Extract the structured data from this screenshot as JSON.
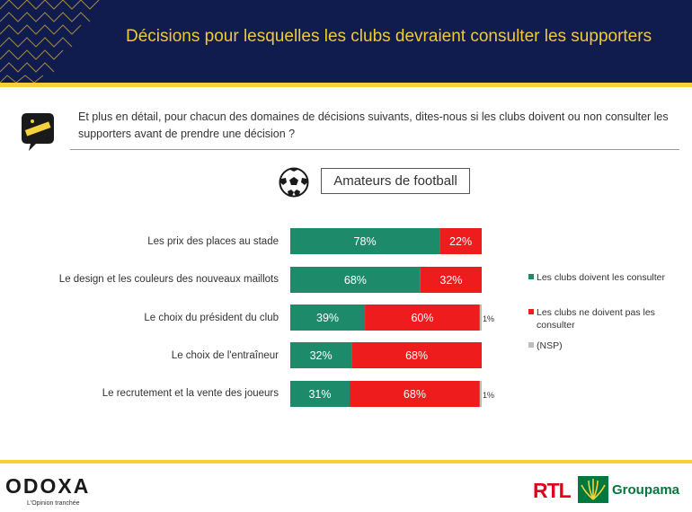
{
  "header": {
    "title": "Décisions pour lesquelles les clubs devraient consulter les supporters"
  },
  "question": {
    "text": "Et plus en détail, pour chacun des domaines de décisions suivants, dites-nous si les clubs doivent ou non consulter les supporters avant de prendre une décision ?"
  },
  "population": {
    "label": "Amateurs de football"
  },
  "colors": {
    "consult": "#1d8a6a",
    "no_consult": "#ee1c1c",
    "nsp": "#bdbdbd",
    "navy": "#111c4e",
    "gold": "#f5d23c"
  },
  "chart_data": {
    "type": "bar",
    "orientation": "horizontal",
    "stacked": true,
    "normalized": true,
    "categories": [
      "Les prix des places au stade",
      "Le design et les couleurs des nouveaux maillots",
      "Le choix du président du club",
      "Le choix de l'entraîneur",
      "Le recrutement et la vente des joueurs"
    ],
    "series": [
      {
        "name": "Les clubs doivent les consulter",
        "values": [
          78,
          68,
          39,
          32,
          31
        ]
      },
      {
        "name": "Les clubs ne doivent pas les consulter",
        "values": [
          22,
          32,
          60,
          68,
          68
        ]
      },
      {
        "name": "(NSP)",
        "values": [
          0,
          0,
          1,
          0,
          1
        ]
      }
    ],
    "data_labels": [
      [
        "78%",
        "68%",
        "39%",
        "32%",
        "31%"
      ],
      [
        "22%",
        "32%",
        "60%",
        "68%",
        "68%"
      ],
      [
        "",
        "",
        "1%",
        "",
        "1%"
      ]
    ],
    "legend_position": "right"
  },
  "legend": {
    "items": [
      {
        "label": "Les clubs doivent les consulter"
      },
      {
        "label": "Les clubs ne doivent pas les consulter"
      },
      {
        "label": "(NSP)"
      }
    ]
  },
  "footer": {
    "odoxa_logo": "ODOXA",
    "odoxa_tagline": "L'Opinion tranchée",
    "rtl_logo": "RTL",
    "groupama_logo": "Groupama"
  }
}
